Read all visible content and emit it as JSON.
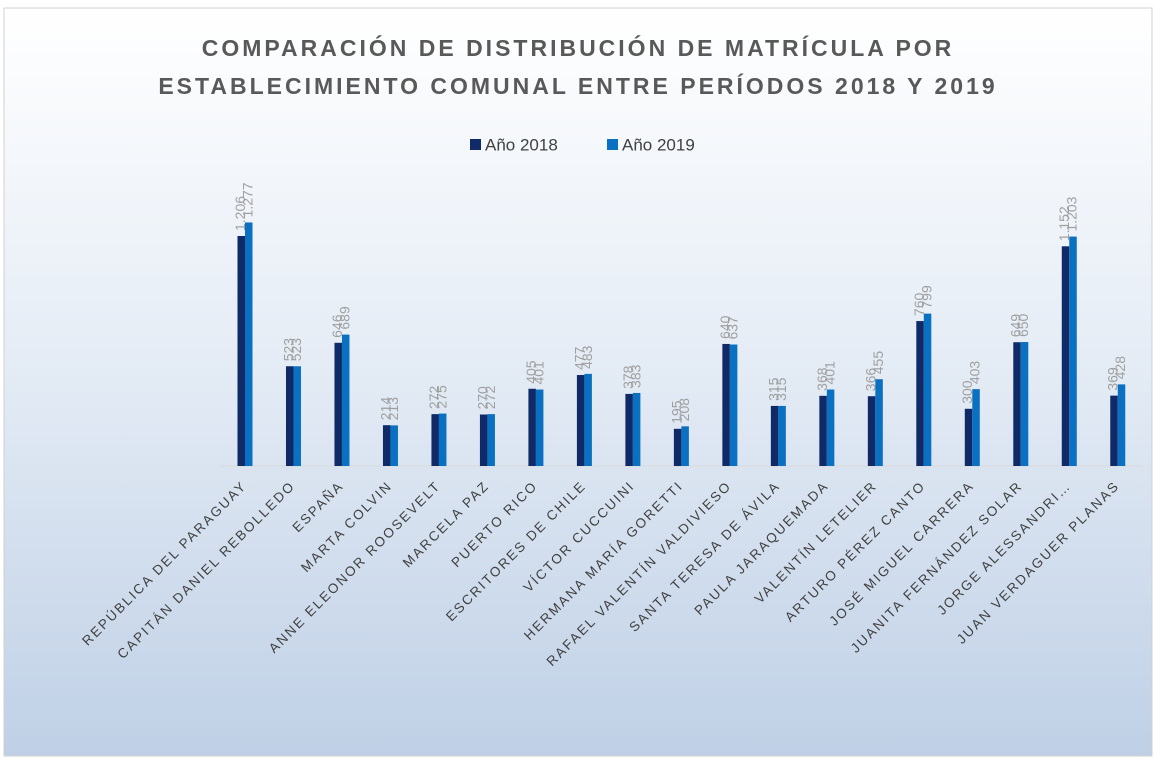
{
  "chart_data": {
    "type": "bar",
    "title": [
      "COMPARACIÓN DE DISTRIBUCIÓN DE MATRÍCULA POR",
      "ESTABLECIMIENTO COMUNAL ENTRE PERÍODOS 2018 Y 2019"
    ],
    "categories": [
      "REPÚBLICA DEL PARAGUAY",
      "CAPITÁN DANIEL REBOLLEDO",
      "ESPAÑA",
      "MARTA COLVIN",
      "ANNE ELEONOR ROOSEVELT",
      "MARCELA PAZ",
      "PUERTO RICO",
      "ESCRITORES DE CHILE",
      "VÍCTOR CUCCUINI",
      "HERMANA MARÍA GORETTI",
      "RAFAEL VALENTÍN VALDIVIESO",
      "SANTA TERESA DE ÁVILA",
      "PAULA JARAQUEMADA",
      "VALENTÍN LETELIER",
      "ARTURO PÉREZ CANTO",
      "JOSÉ MIGUEL CARRERA",
      "JUANITA FERNÁNDEZ SOLAR",
      "JORGE ALESSANDRI…",
      "JUAN VERDAGUER PLANAS"
    ],
    "series": [
      {
        "name": "Año 2018",
        "color": "#102a68",
        "values": [
          1206,
          523,
          646,
          214,
          272,
          270,
          405,
          477,
          378,
          195,
          640,
          315,
          368,
          366,
          760,
          300,
          649,
          1152,
          369
        ],
        "value_labels": [
          "1.206",
          "523",
          "646",
          "214",
          "272",
          "270",
          "405",
          "477",
          "378",
          "195",
          "640",
          "315",
          "368",
          "366",
          "760",
          "300",
          "649",
          "1.152",
          "369"
        ]
      },
      {
        "name": "Año 2019",
        "color": "#0a70c2",
        "values": [
          1277,
          523,
          689,
          213,
          275,
          272,
          401,
          483,
          383,
          208,
          637,
          315,
          401,
          455,
          799,
          403,
          650,
          1203,
          428
        ],
        "value_labels": [
          "1.277",
          "523",
          "689",
          "213",
          "275",
          "272",
          "401",
          "483",
          "383",
          "208",
          "637",
          "315",
          "401",
          "455",
          "799",
          "403",
          "650",
          "1.203",
          "428"
        ]
      }
    ],
    "ylim": [
      0,
      1400
    ],
    "legend": "top"
  }
}
